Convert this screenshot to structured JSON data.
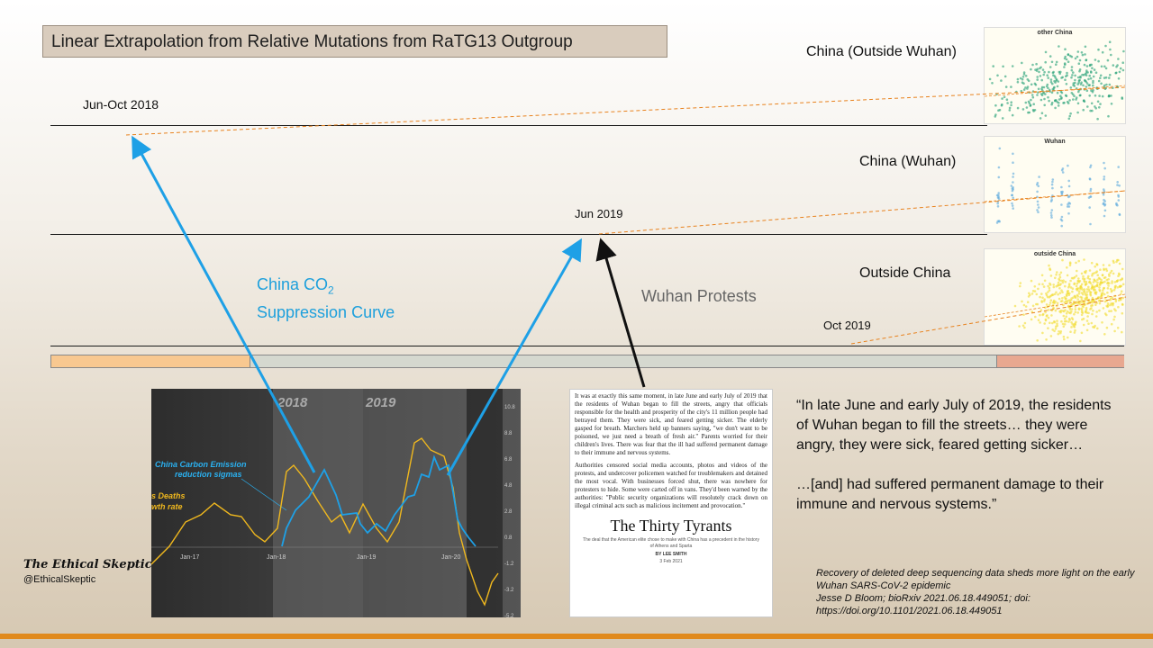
{
  "title": "Linear Extrapolation from Relative Mutations from RaTG13 Outgroup",
  "labels": {
    "jun_oct_2018": "Jun-Oct 2018",
    "jun_2019": "Jun 2019",
    "oct_2019": "Oct 2019",
    "china_outside_wuhan": "China (Outside Wuhan)",
    "china_wuhan": "China (Wuhan)",
    "outside_china": "Outside China",
    "co2_line1": "China CO",
    "co2_sub": "2",
    "co2_line2": "Suppression Curve",
    "wuhan_protests": "Wuhan Protests"
  },
  "scatter_panels": [
    {
      "title": "other China",
      "color": "#1f9e73"
    },
    {
      "title": "Wuhan",
      "color": "#5aa9dc"
    },
    {
      "title": "outside China",
      "color": "#f2dc2e"
    }
  ],
  "embedded_chart": {
    "year_labels": [
      "2018",
      "2019"
    ],
    "series_label_1a": "China Carbon Emission",
    "series_label_1b": "reduction sigmas",
    "series_label_2a": "s Deaths",
    "series_label_2b": "wth rate",
    "x_ticks": [
      "Jan-17",
      "Jan-18",
      "Jan-19",
      "Jan-20"
    ],
    "y_ticks": [
      "10.8",
      "8.8",
      "6.8",
      "4.8",
      "2.8",
      "0.8",
      "-1.2",
      "-3.2",
      "-5.2"
    ],
    "colors": {
      "co2": "#1ea0e6",
      "deaths": "#f0b81e"
    }
  },
  "article": {
    "para1": "It was at exactly this same moment, in late June and early July of 2019 that the residents of Wuhan began to fill the streets, angry that officials responsible for the health and prosperity of the city's 11 million people had betrayed them. They were sick, and feared getting sicker. The elderly gasped for breath. Marchers held up banners saying, \"we don't want to be poisoned, we just need a breath of fresh air.\" Parents worried for their children's lives. There was fear that the ill had suffered permanent damage to their immune and nervous systems.",
    "para2": "Authorities censored social media accounts, photos and videos of the protests, and undercover policemen watched for troublemakers and detained the most vocal. With businesses forced shut, there was nowhere for protesters to hide. Some were carted off in vans. They'd been warned by the authorities: \"Public security organizations will resolutely crack down on illegal criminal acts such as malicious incitement and provocation.\"",
    "headline": "The Thirty Tyrants",
    "subhead": "The deal that the American elite chose to make with China has a precedent in the history of Athens and Sparta",
    "byline": "BY LEE SMITH",
    "date": "3 Feb 2021"
  },
  "quote": {
    "line1": "“In late June and early July of 2019, the residents of Wuhan began to fill the streets… they were angry, they were sick, feared getting sicker…",
    "line2": "…[and] had suffered permanent damage to their immune and nervous systems.”"
  },
  "citation": {
    "line1": "Recovery of deleted deep sequencing data sheds more light on the early Wuhan SARS-CoV-2 epidemic",
    "line2": "Jesse D Bloom; bioRxiv 2021.06.18.449051; doi: https://doi.org/10.1101/2021.06.18.449051"
  },
  "branding": {
    "logo": "The Ethical Skeptic",
    "handle": "@EthicalSkeptic"
  },
  "colors": {
    "arrow_blue": "#1ea0e6",
    "dashed_orange": "#e8821e",
    "timeline_left": "#f8c890",
    "timeline_mid": "#d5d8cf",
    "timeline_right": "#e8a890"
  }
}
